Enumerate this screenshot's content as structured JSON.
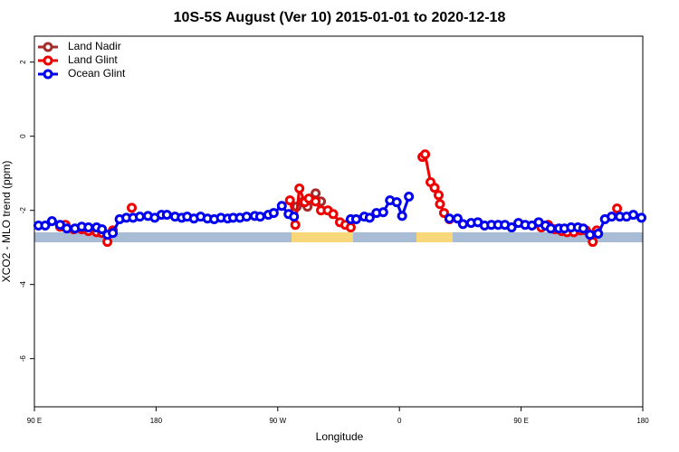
{
  "chart_data": {
    "type": "line",
    "title": "10S-5S August (Ver 10)   2015-01-01 to 2020-12-18",
    "xlabel": "Longitude",
    "ylabel": "XCO2 - MLO trend (ppm)",
    "xlim": [
      90,
      540
    ],
    "ylim": [
      -7.3,
      2.7
    ],
    "xticks": [
      {
        "value": 90,
        "label": "90 E"
      },
      180,
      {
        "value": 270,
        "label": "90 W"
      },
      {
        "value": 360,
        "label": "0"
      },
      {
        "value": 450,
        "label": "90 E"
      },
      {
        "value": 540,
        "label": "180"
      }
    ],
    "yticks": [
      -6,
      -4,
      -2,
      0,
      2
    ],
    "legend": "top-left",
    "series": [
      {
        "name": "Land Nadir",
        "color": "#a52a2a",
        "x": [
          284,
          288,
          292,
          298,
          302
        ],
        "values": [
          -1.9,
          -1.78,
          -1.9,
          -1.54,
          -1.76
        ]
      },
      {
        "name": "Land Glint",
        "color": "#ee0000",
        "x": [
          109,
          113,
          119,
          125,
          130,
          136,
          140,
          144,
          148,
          null,
          162,
          null,
          279,
          283,
          286,
          290,
          293,
          298,
          302,
          307,
          311,
          316,
          320,
          324,
          null,
          377,
          379,
          383,
          386,
          389,
          390,
          393,
          397,
          null,
          465,
          470,
          475,
          480,
          484,
          489,
          494,
          498,
          503,
          506,
          null,
          521
        ],
        "values": [
          -2.44,
          -2.39,
          -2.51,
          -2.51,
          -2.56,
          -2.59,
          -2.61,
          -2.85,
          -2.54,
          null,
          -1.93,
          null,
          -1.73,
          -2.39,
          -1.41,
          -1.78,
          -1.68,
          -1.76,
          -2.0,
          -2.0,
          -2.1,
          -2.32,
          -2.39,
          -2.46,
          null,
          -0.56,
          -0.49,
          -1.24,
          -1.39,
          -1.59,
          -1.83,
          -2.07,
          -2.24,
          null,
          -2.46,
          -2.39,
          -2.51,
          -2.56,
          -2.59,
          -2.59,
          -2.54,
          -2.54,
          -2.85,
          -2.54,
          null,
          -1.95
        ]
      },
      {
        "name": "Ocean Glint",
        "color": "#0000ee",
        "x": [
          93,
          98,
          103,
          109,
          114,
          120,
          125,
          130,
          136,
          140,
          144,
          148,
          153,
          158,
          163,
          168,
          174,
          179,
          184,
          188,
          194,
          199,
          203,
          208,
          213,
          218,
          223,
          228,
          233,
          237,
          242,
          247,
          253,
          257,
          263,
          267,
          273,
          278,
          282,
          null,
          324,
          328,
          334,
          338,
          343,
          348,
          353,
          358,
          362,
          367,
          null,
          397,
          403,
          407,
          413,
          418,
          423,
          428,
          433,
          438,
          443,
          448,
          453,
          458,
          463,
          468,
          472,
          478,
          482,
          487,
          492,
          496,
          501,
          507,
          512,
          517,
          523,
          528,
          533,
          539
        ],
        "values": [
          -2.41,
          -2.41,
          -2.29,
          -2.39,
          -2.49,
          -2.49,
          -2.44,
          -2.46,
          -2.46,
          -2.51,
          -2.66,
          -2.61,
          -2.24,
          -2.2,
          -2.2,
          -2.17,
          -2.15,
          -2.2,
          -2.12,
          -2.12,
          -2.17,
          -2.2,
          -2.17,
          -2.22,
          -2.17,
          -2.22,
          -2.24,
          -2.2,
          -2.22,
          -2.2,
          -2.2,
          -2.17,
          -2.15,
          -2.17,
          -2.12,
          -2.07,
          -1.88,
          -2.1,
          -2.17,
          null,
          -2.24,
          -2.24,
          -2.17,
          -2.2,
          -2.07,
          -2.05,
          -1.73,
          -1.78,
          -2.15,
          -1.63,
          null,
          -2.22,
          -2.22,
          -2.37,
          -2.34,
          -2.32,
          -2.41,
          -2.39,
          -2.39,
          -2.39,
          -2.46,
          -2.34,
          -2.39,
          -2.41,
          -2.32,
          -2.41,
          -2.49,
          -2.49,
          -2.49,
          -2.46,
          -2.46,
          -2.49,
          -2.66,
          -2.63,
          -2.24,
          -2.17,
          -2.17,
          -2.17,
          -2.12,
          -2.2
        ]
      }
    ]
  }
}
